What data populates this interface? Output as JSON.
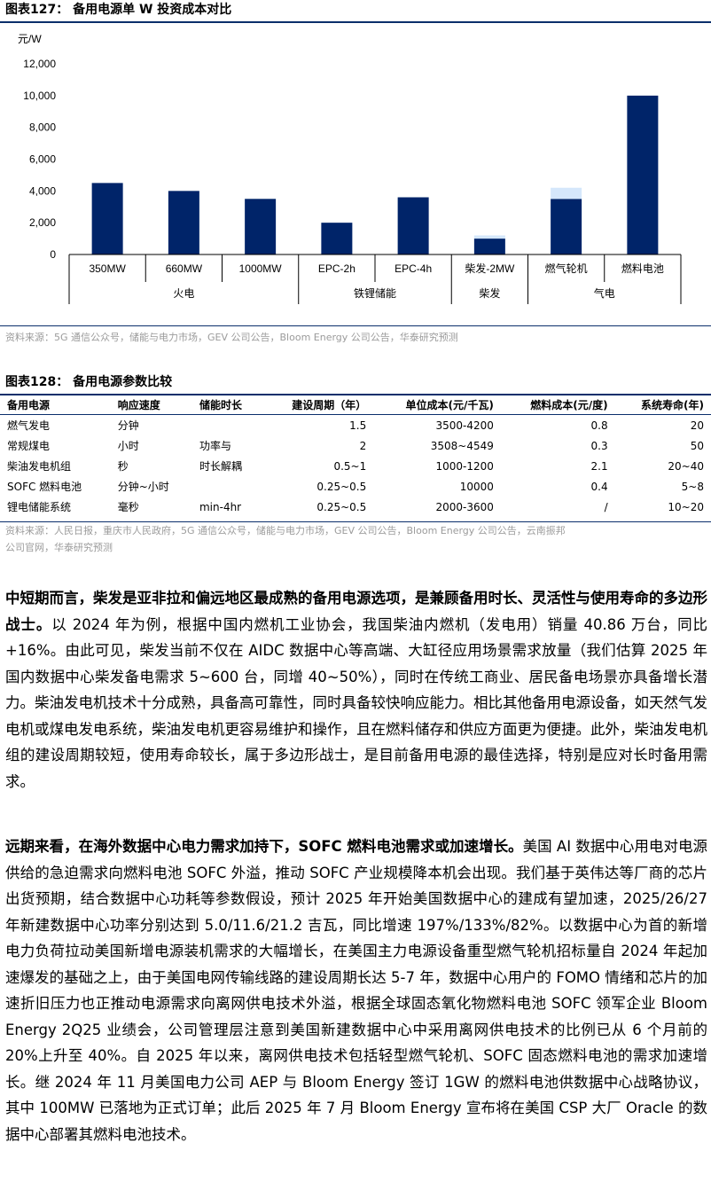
{
  "fig127": {
    "title": "图表127：  备用电源单 W 投资成本对比",
    "source": "资料来源：5G 通信公众号，储能与电力市场，GEV 公司公告，Bloom Energy 公司公告，华泰研究预测"
  },
  "chart_data": {
    "type": "bar",
    "title": "",
    "ylabel": "元/W",
    "ylim": [
      0,
      12000
    ],
    "yticks": [
      "12,000",
      "10,000",
      "8,000",
      "6,000",
      "4,000",
      "2,000",
      "0"
    ],
    "categories": [
      "350MW",
      "660MW",
      "1000MW",
      "EPC-2h",
      "EPC-4h",
      "柴发-2MW",
      "燃气轮机",
      "燃料电池"
    ],
    "groups": [
      {
        "label": "火电",
        "categories": [
          "350MW",
          "660MW",
          "1000MW"
        ]
      },
      {
        "label": "铁锂储能",
        "categories": [
          "EPC-2h",
          "EPC-4h"
        ]
      },
      {
        "label": "柴发",
        "categories": [
          "柴发-2MW"
        ]
      },
      {
        "label": "气电",
        "categories": [
          "燃气轮机",
          "燃料电池"
        ]
      }
    ],
    "series": [
      {
        "values": [
          4500,
          4000,
          3500,
          2000,
          3600,
          1000,
          3500,
          10000
        ],
        "color": "#002469"
      },
      {
        "values": [
          0,
          0,
          0,
          0,
          0,
          200,
          700,
          0
        ],
        "color": "#d5e7fb"
      }
    ],
    "grid": false,
    "legend": "none"
  },
  "fig128": {
    "title": "图表128：  备用电源参数比较",
    "headers": [
      "备用电源",
      "响应速度",
      "储能时长",
      "建设周期（年）",
      "单位成本(元/千瓦)",
      "燃料成本(元/度)",
      "系统寿命(年)"
    ],
    "rows": [
      [
        "燃气发电",
        "分钟",
        "",
        "1.5",
        "3500-4200",
        "0.8",
        "20"
      ],
      [
        "常规煤电",
        "小时",
        "功率与",
        "2",
        "3508~4549",
        "0.3",
        "50"
      ],
      [
        "柴油发电机组",
        "秒",
        "时长解耦",
        "0.5~1",
        "1000-1200",
        "2.1",
        "20~40"
      ],
      [
        "SOFC 燃料电池",
        "分钟~小时",
        "",
        "0.25~0.5",
        "10000",
        "0.4",
        "5~8"
      ],
      [
        "锂电储能系统",
        "毫秒",
        "min-4hr",
        "0.25~0.5",
        "2000-3600",
        "/",
        "10~20"
      ]
    ],
    "source_line1": "资料来源：人民日报，重庆市人民政府，5G 通信公众号，储能与电力市场，GEV 公司公告，Bloom Energy 公司公告，云南振邦",
    "source_line2": "公司官网，华泰研究预测"
  },
  "para1": {
    "bold": "中短期而言，柴发是亚非拉和偏远地区最成熟的备用电源选项，是兼顾备用时长、灵活性与使用寿命的多边形战士。",
    "text": "以 2024 年为例，根据中国内燃机工业协会，我国柴油内燃机（发电用）销量 40.86 万台，同比+16%。由此可见，柴发当前不仅在 AIDC 数据中心等高端、大缸径应用场景需求放量（我们估算 2025 年国内数据中心柴发备电需求 5~600 台，同增 40~50%），同时在传统工商业、居民备电场景亦具备增长潜力。柴油发电机技术十分成熟，具备高可靠性，同时具备较快响应能力。相比其他备用电源设备，如天然气发电机或煤电发电系统，柴油发电机更容易维护和操作，且在燃料储存和供应方面更为便捷。此外，柴油发电机组的建设周期较短，使用寿命较长，属于多边形战士，是目前备用电源的最佳选择，特别是应对长时备用需求。"
  },
  "para2": {
    "bold": "远期来看，在海外数据中心电力需求加持下，SOFC 燃料电池需求或加速增长。",
    "text": "美国 AI 数据中心用电对电源供给的急迫需求向燃料电池 SOFC 外溢，推动 SOFC 产业规模降本机会出现。我们基于英伟达等厂商的芯片出货预期，结合数据中心功耗等参数假设，预计 2025 年开始美国数据中心的建成有望加速，2025/26/27 年新建数据中心功率分别达到 5.0/11.6/21.2 吉瓦，同比增速 197%/133%/82%。以数据中心为首的新增电力负荷拉动美国新增电源装机需求的大幅增长，在美国主力电源设备重型燃气轮机招标量自 2024 年起加速爆发的基础之上，由于美国电网传输线路的建设周期长达 5-7 年，数据中心用户的 FOMO 情绪和芯片的加速折旧压力也正推动电源需求向离网供电技术外溢，根据全球固态氧化物燃料电池 SOFC 领军企业 Bloom Energy 2Q25 业绩会，公司管理层注意到美国新建数据中心中采用离网供电技术的比例已从 6 个月前的 20%上升至 40%。自 2025 年以来，离网供电技术包括轻型燃气轮机、SOFC 固态燃料电池的需求加速增长。继 2024 年 11 月美国电力公司 AEP 与 Bloom Energy 签订 1GW 的燃料电池供数据中心战略协议，其中 100MW 已落地为正式订单；此后 2025 年 7 月 Bloom Energy 宣布将在美国 CSP 大厂 Oracle 的数据中心部署其燃料电池技术。"
  }
}
